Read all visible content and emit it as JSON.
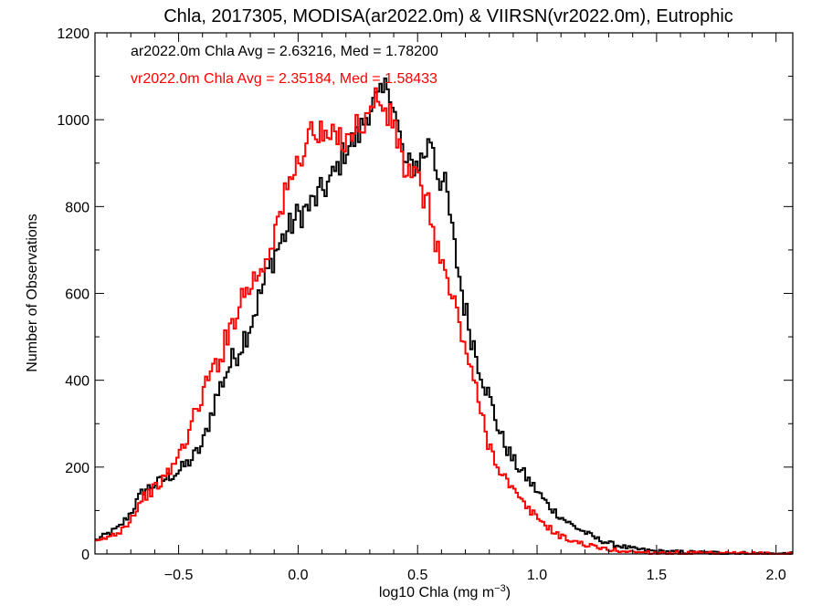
{
  "chart_data": {
    "type": "line",
    "title": "Chla, 2017305, MODISA(ar2022.0m) & VIIRSN(vr2022.0m), Eutrophic",
    "xlabel": "log10 Chla (mg m",
    "xlabel_sup": "−3",
    "xlabel_close": ")",
    "ylabel": "Number of Observations",
    "xlim": [
      -0.85,
      2.07
    ],
    "ylim": [
      0,
      1200
    ],
    "x_ticks": [
      -0.5,
      0.0,
      0.5,
      1.0,
      1.5,
      2.0
    ],
    "x_tick_labels": [
      "−0.5",
      "0.0",
      "0.5",
      "1.0",
      "1.5",
      "2.0"
    ],
    "y_ticks": [
      0,
      200,
      400,
      600,
      800,
      1000,
      1200
    ],
    "y_tick_labels": [
      "0",
      "200",
      "400",
      "600",
      "800",
      "1000",
      "1200"
    ],
    "grid": false,
    "legend_placement": "top-left",
    "series": [
      {
        "name": "ar2022.0m Chla Avg = 2.63216, Med = 1.78200",
        "color": "#000000",
        "points": [
          [
            -0.85,
            30
          ],
          [
            -0.75,
            60
          ],
          [
            -0.7,
            95
          ],
          [
            -0.65,
            145
          ],
          [
            -0.6,
            160
          ],
          [
            -0.55,
            175
          ],
          [
            -0.5,
            190
          ],
          [
            -0.45,
            215
          ],
          [
            -0.4,
            250
          ],
          [
            -0.35,
            350
          ],
          [
            -0.3,
            420
          ],
          [
            -0.25,
            470
          ],
          [
            -0.2,
            530
          ],
          [
            -0.15,
            610
          ],
          [
            -0.1,
            690
          ],
          [
            -0.05,
            740
          ],
          [
            0.0,
            780
          ],
          [
            0.05,
            800
          ],
          [
            0.1,
            835
          ],
          [
            0.15,
            870
          ],
          [
            0.2,
            935
          ],
          [
            0.25,
            960
          ],
          [
            0.3,
            1030
          ],
          [
            0.35,
            1050
          ],
          [
            0.38,
            1090
          ],
          [
            0.4,
            1030
          ],
          [
            0.45,
            890
          ],
          [
            0.5,
            900
          ],
          [
            0.53,
            920
          ],
          [
            0.56,
            965
          ],
          [
            0.58,
            880
          ],
          [
            0.62,
            840
          ],
          [
            0.65,
            720
          ],
          [
            0.7,
            560
          ],
          [
            0.75,
            450
          ],
          [
            0.8,
            360
          ],
          [
            0.85,
            270
          ],
          [
            0.9,
            215
          ],
          [
            0.95,
            180
          ],
          [
            1.0,
            145
          ],
          [
            1.05,
            110
          ],
          [
            1.1,
            85
          ],
          [
            1.15,
            65
          ],
          [
            1.2,
            50
          ],
          [
            1.25,
            35
          ],
          [
            1.3,
            25
          ],
          [
            1.35,
            18
          ],
          [
            1.4,
            12
          ],
          [
            1.5,
            6
          ],
          [
            1.6,
            4
          ],
          [
            1.7,
            3
          ],
          [
            1.8,
            2
          ],
          [
            1.9,
            1
          ],
          [
            2.07,
            0
          ]
        ]
      },
      {
        "name": "vr2022.0m Chla Avg = 2.35184, Med = 1.58433",
        "color": "#ff0000",
        "points": [
          [
            -0.85,
            25
          ],
          [
            -0.75,
            50
          ],
          [
            -0.7,
            80
          ],
          [
            -0.65,
            130
          ],
          [
            -0.6,
            150
          ],
          [
            -0.55,
            180
          ],
          [
            -0.5,
            225
          ],
          [
            -0.45,
            290
          ],
          [
            -0.4,
            370
          ],
          [
            -0.35,
            430
          ],
          [
            -0.3,
            490
          ],
          [
            -0.25,
            580
          ],
          [
            -0.2,
            620
          ],
          [
            -0.15,
            660
          ],
          [
            -0.1,
            740
          ],
          [
            -0.05,
            830
          ],
          [
            0.0,
            900
          ],
          [
            0.05,
            975
          ],
          [
            0.1,
            960
          ],
          [
            0.15,
            955
          ],
          [
            0.2,
            960
          ],
          [
            0.25,
            985
          ],
          [
            0.28,
            1000
          ],
          [
            0.3,
            1010
          ],
          [
            0.33,
            1060
          ],
          [
            0.36,
            1020
          ],
          [
            0.4,
            990
          ],
          [
            0.45,
            880
          ],
          [
            0.5,
            860
          ],
          [
            0.55,
            790
          ],
          [
            0.6,
            670
          ],
          [
            0.65,
            580
          ],
          [
            0.7,
            480
          ],
          [
            0.75,
            360
          ],
          [
            0.8,
            250
          ],
          [
            0.85,
            190
          ],
          [
            0.9,
            145
          ],
          [
            0.95,
            110
          ],
          [
            1.0,
            85
          ],
          [
            1.05,
            60
          ],
          [
            1.1,
            40
          ],
          [
            1.15,
            30
          ],
          [
            1.2,
            22
          ],
          [
            1.25,
            15
          ],
          [
            1.3,
            10
          ],
          [
            1.35,
            7
          ],
          [
            1.4,
            5
          ],
          [
            1.5,
            3
          ],
          [
            1.6,
            2
          ],
          [
            1.7,
            1
          ],
          [
            2.07,
            0
          ]
        ]
      }
    ]
  }
}
